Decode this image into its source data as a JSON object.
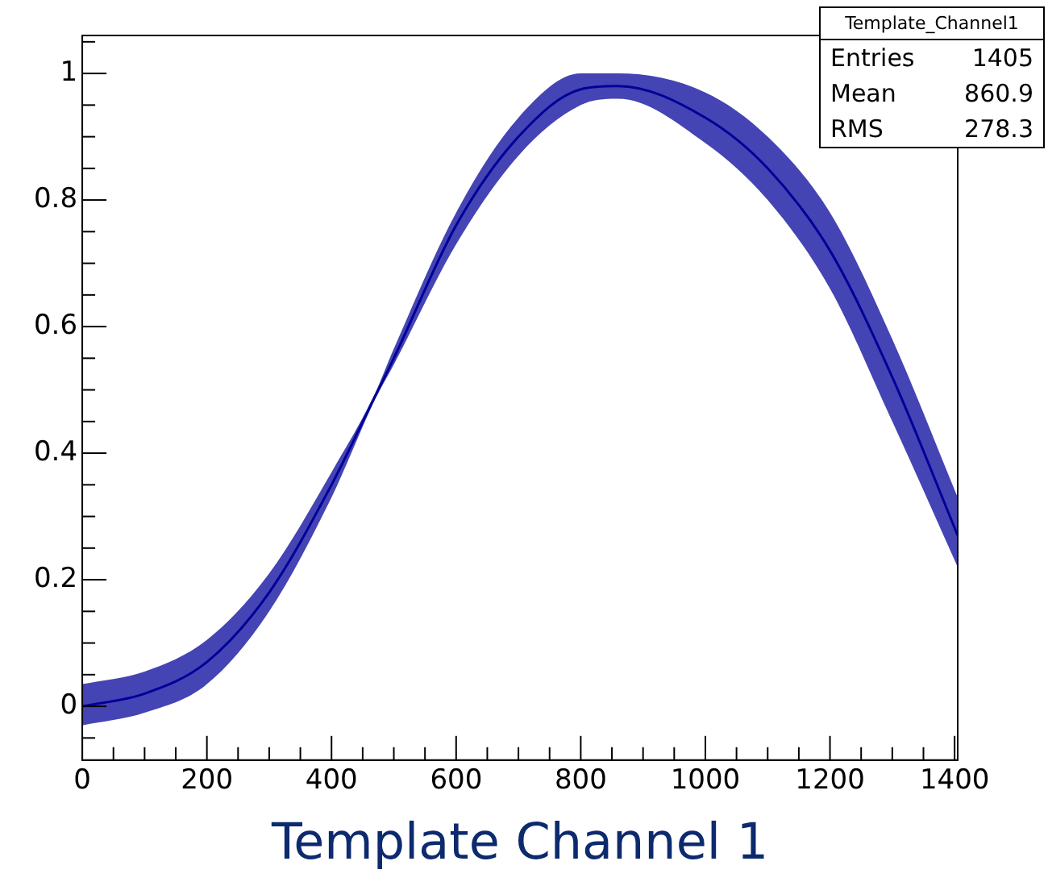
{
  "chart_data": {
    "type": "line",
    "xlabel": "Template Channel 1",
    "annotations": [
      "Template_Channel1",
      "Entries",
      "1405",
      "Mean",
      "860.9",
      "RMS",
      "278.3"
    ],
    "xlim": [
      0,
      1405
    ],
    "ylim": [
      -0.085,
      1.06
    ],
    "xticks": [
      0,
      {
        "value": 50,
        "label": null
      },
      {
        "value": 100,
        "label": null
      },
      {
        "value": 150,
        "label": null
      },
      200,
      {
        "value": 250,
        "label": null
      },
      {
        "value": 300,
        "label": null
      },
      {
        "value": 350,
        "label": null
      },
      400,
      {
        "value": 450,
        "label": null
      },
      {
        "value": 500,
        "label": null
      },
      {
        "value": 550,
        "label": null
      },
      600,
      {
        "value": 650,
        "label": null
      },
      {
        "value": 700,
        "label": null
      },
      {
        "value": 750,
        "label": null
      },
      800,
      {
        "value": 850,
        "label": null
      },
      {
        "value": 900,
        "label": null
      },
      {
        "value": 950,
        "label": null
      },
      1000,
      {
        "value": 1050,
        "label": null
      },
      {
        "value": 1100,
        "label": null
      },
      {
        "value": 1150,
        "label": null
      },
      1200,
      {
        "value": 1250,
        "label": null
      },
      {
        "value": 1300,
        "label": null
      },
      {
        "value": 1350,
        "label": null
      },
      1400
    ],
    "yticks": [
      {
        "value": -0.05,
        "label": null
      },
      0,
      {
        "value": 0.05,
        "label": null
      },
      {
        "value": 0.1,
        "label": null
      },
      {
        "value": 0.15,
        "label": null
      },
      0.2,
      {
        "value": 0.25,
        "label": null
      },
      {
        "value": 0.3,
        "label": null
      },
      {
        "value": 0.35,
        "label": null
      },
      0.4,
      {
        "value": 0.45,
        "label": null
      },
      {
        "value": 0.5,
        "label": null
      },
      {
        "value": 0.55,
        "label": null
      },
      0.6,
      {
        "value": 0.65,
        "label": null
      },
      {
        "value": 0.7,
        "label": null
      },
      {
        "value": 0.75,
        "label": null
      },
      0.8,
      {
        "value": 0.85,
        "label": null
      },
      {
        "value": 0.9,
        "label": null
      },
      {
        "value": 0.95,
        "label": null
      },
      1,
      {
        "value": 1.05,
        "label": null
      }
    ],
    "x": [
      0,
      100,
      200,
      300,
      400,
      470,
      500,
      600,
      700,
      800,
      860,
      1000,
      1100,
      1200,
      1300,
      1405
    ],
    "series": [
      {
        "color": "#000099",
        "values": [
          0,
          0.02,
          0.07,
          0.18,
          0.35,
          0.49,
          0.55,
          0.76,
          0.9,
          0.975,
          0.98,
          0.93,
          0.85,
          0.72,
          0.52,
          0.27
        ],
        "lower": [
          -0.03,
          -0.01,
          0.035,
          0.15,
          0.33,
          0.485,
          0.54,
          0.73,
          0.87,
          0.95,
          0.96,
          0.89,
          0.8,
          0.66,
          0.45,
          0.22
        ],
        "upper": [
          0.035,
          0.055,
          0.105,
          0.21,
          0.37,
          0.495,
          0.565,
          0.78,
          0.93,
          1.0,
          1.0,
          0.97,
          0.9,
          0.78,
          0.58,
          0.33
        ]
      }
    ],
    "grid": false,
    "legend": false,
    "marker": "none",
    "line_style": "solid"
  }
}
